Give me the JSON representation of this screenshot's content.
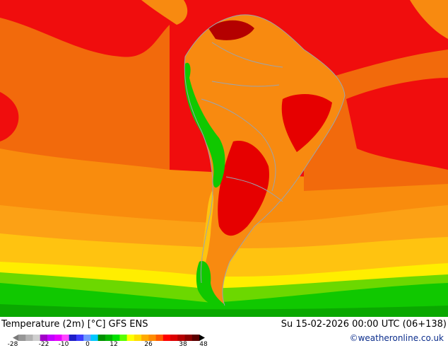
{
  "title": "Temperature (2m) [°C] GFS ENS",
  "run_info": "Su 15-02-2026 00:00 UTC (06+138)",
  "credit": "©weatheronline.co.uk",
  "legend": {
    "ticks": [
      "-28",
      "-22",
      "-10",
      "0",
      "12",
      "26",
      "38",
      "48"
    ],
    "colors": [
      "#7a7a7a",
      "#969696",
      "#b2b2b2",
      "#cfcfcf",
      "#a100c8",
      "#c300ff",
      "#e600ff",
      "#ff46ff",
      "#1e1ec8",
      "#3c3cff",
      "#6e9bff",
      "#00c8ff",
      "#009100",
      "#00b400",
      "#00e100",
      "#5aff00",
      "#ffff00",
      "#ffdc00",
      "#ffaa00",
      "#ff8c00",
      "#ff5a00",
      "#ff0000",
      "#dc0000",
      "#b40000",
      "#8c0000",
      "#5a0000",
      "#000000"
    ]
  },
  "palette": {
    "ocean_red": "#f00d0d",
    "orange_dark": "#f26a0c",
    "orange": "#f98c0d",
    "orange_light": "#fca115",
    "yellow_orange": "#ffc310",
    "yellow": "#ffee00",
    "green_light": "#6cd800",
    "green": "#10c800",
    "green_dark": "#0aa800",
    "land_orange": "#f88a10",
    "land_red": "#e60000",
    "land_dark": "#b40000",
    "border": "#9aa4b0"
  }
}
